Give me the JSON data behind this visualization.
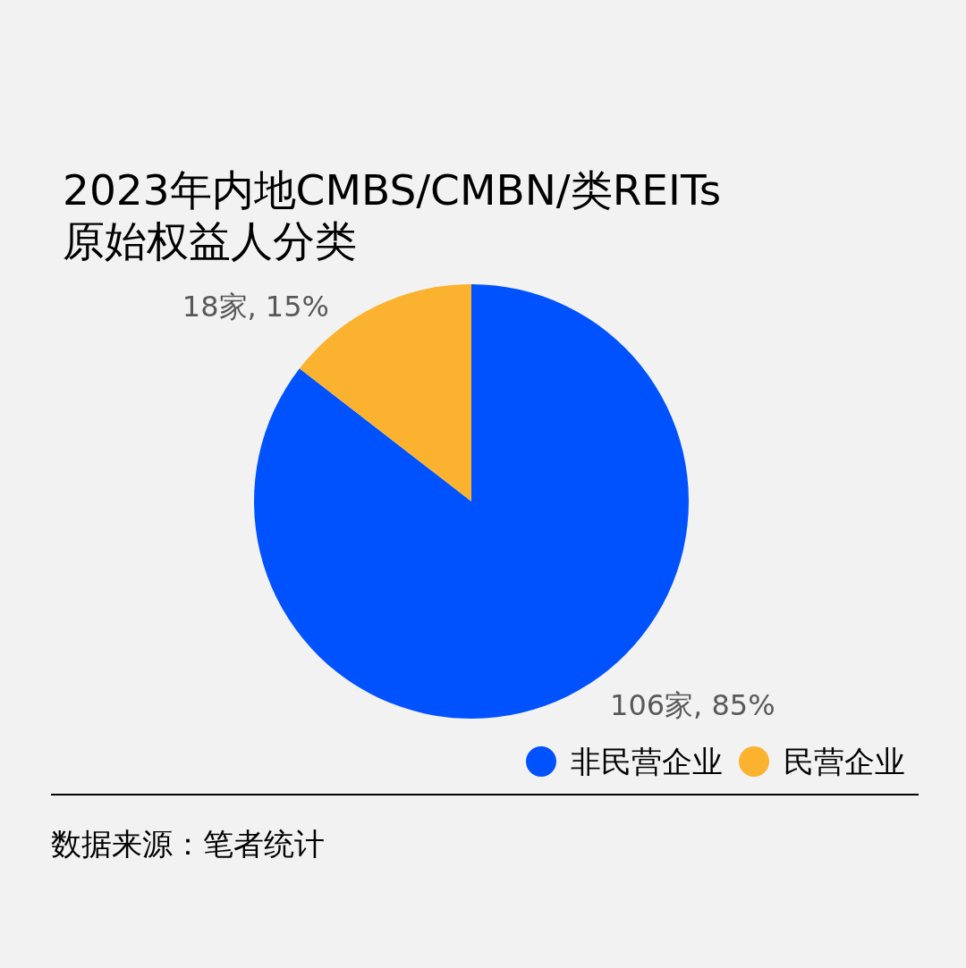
{
  "chart_data": {
    "type": "pie",
    "title": "2023年内地CMBS/CMBN/类REITs原始权益人分类",
    "categories": [
      "非民营企业",
      "民营企业"
    ],
    "values": [
      106,
      18
    ],
    "colors": [
      "#0052ff",
      "#fbb22e"
    ],
    "value_labels": [
      "106家, 85%",
      "18家, 15%"
    ],
    "legend": "bottom right",
    "annotations": [
      "数据来源：笔者统计"
    ]
  }
}
